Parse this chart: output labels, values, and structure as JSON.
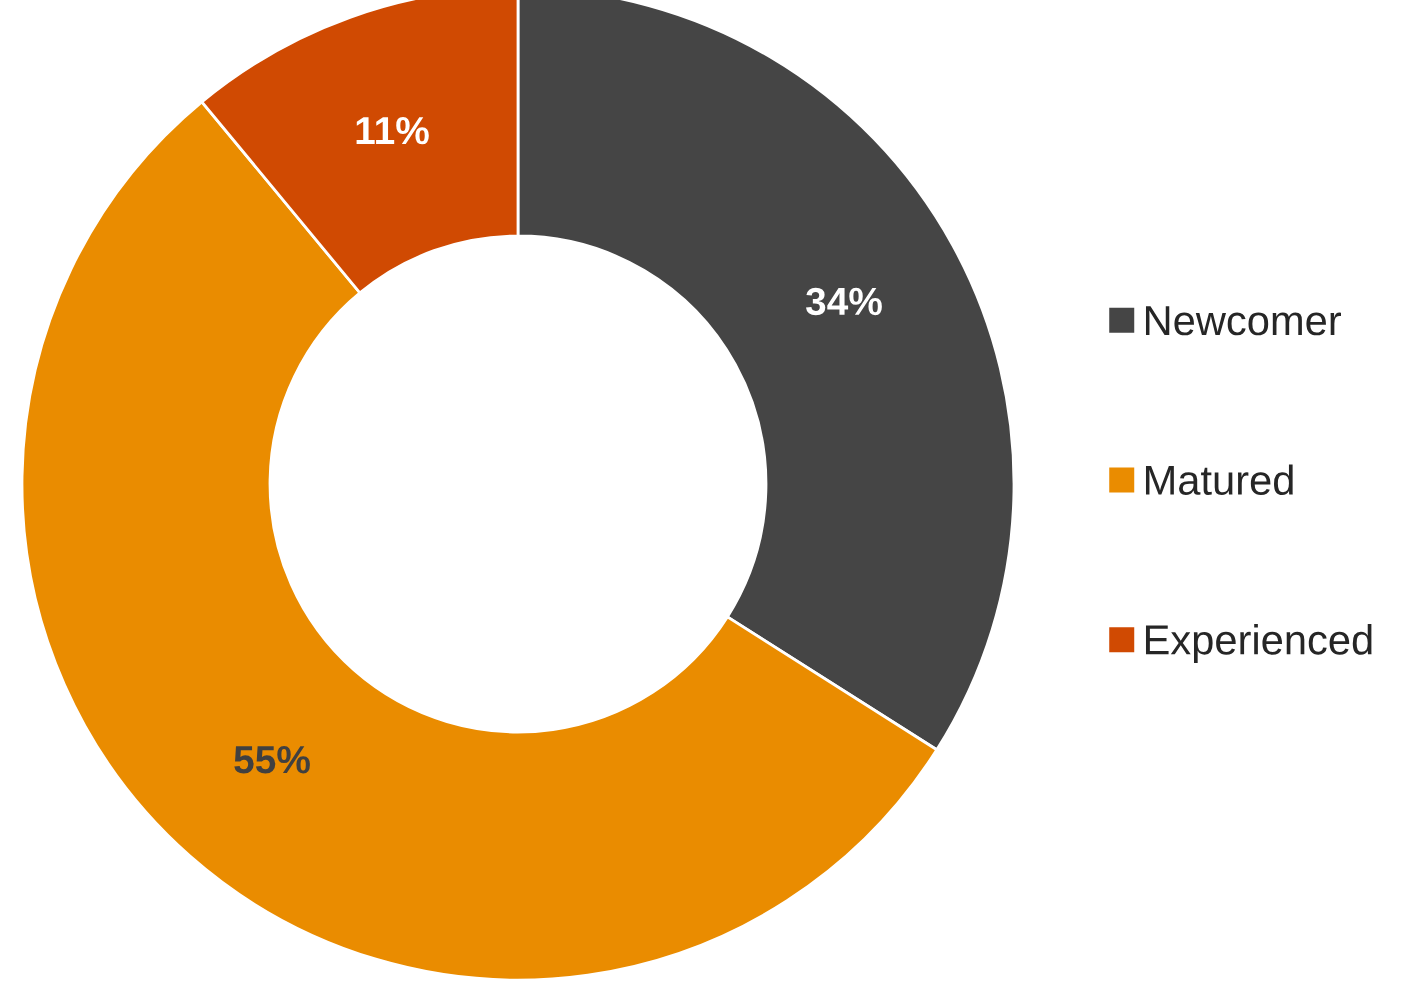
{
  "chart_data": {
    "type": "donut",
    "categories": [
      "Newcomer",
      "Matured",
      "Experienced"
    ],
    "values": [
      34,
      55,
      11
    ],
    "value_labels": [
      "34%",
      "55%",
      "11%"
    ],
    "colors": [
      "#454545",
      "#ea8c00",
      "#d04a02"
    ],
    "legend": "right"
  }
}
